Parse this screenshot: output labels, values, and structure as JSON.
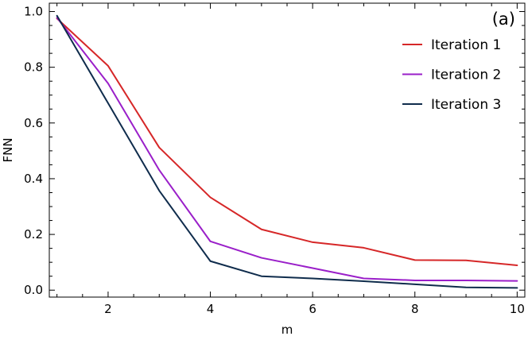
{
  "chart_data": {
    "type": "line",
    "panel_label": "(a)",
    "xlabel": "m",
    "ylabel": "FNN",
    "xlim": [
      0.85,
      10.15
    ],
    "ylim": [
      -0.025,
      1.03
    ],
    "xticks": [
      2,
      4,
      6,
      8,
      10
    ],
    "xtick_labels": [
      "2",
      "4",
      "6",
      "8",
      "10"
    ],
    "yticks": [
      0.0,
      0.2,
      0.4,
      0.6,
      0.8,
      1.0
    ],
    "ytick_labels": [
      "0.0",
      "0.2",
      "0.4",
      "0.6",
      "0.8",
      "1.0"
    ],
    "legend_position": "top-right",
    "grid": false,
    "x": [
      1,
      2,
      3,
      4,
      5,
      6,
      7,
      8,
      9,
      10
    ],
    "series": [
      {
        "name": "Iteration 1",
        "color": "#d62728",
        "values": [
          0.975,
          0.805,
          0.512,
          0.333,
          0.218,
          0.172,
          0.152,
          0.108,
          0.107,
          0.089
        ]
      },
      {
        "name": "Iteration 2",
        "color": "#9a1fc9",
        "values": [
          0.978,
          0.742,
          0.431,
          0.175,
          0.116,
          0.079,
          0.042,
          0.035,
          0.035,
          0.033
        ]
      },
      {
        "name": "Iteration 3",
        "color": "#0f2c4c",
        "values": [
          0.985,
          0.671,
          0.357,
          0.104,
          0.05,
          0.042,
          0.032,
          0.021,
          0.01,
          0.008
        ]
      }
    ]
  }
}
